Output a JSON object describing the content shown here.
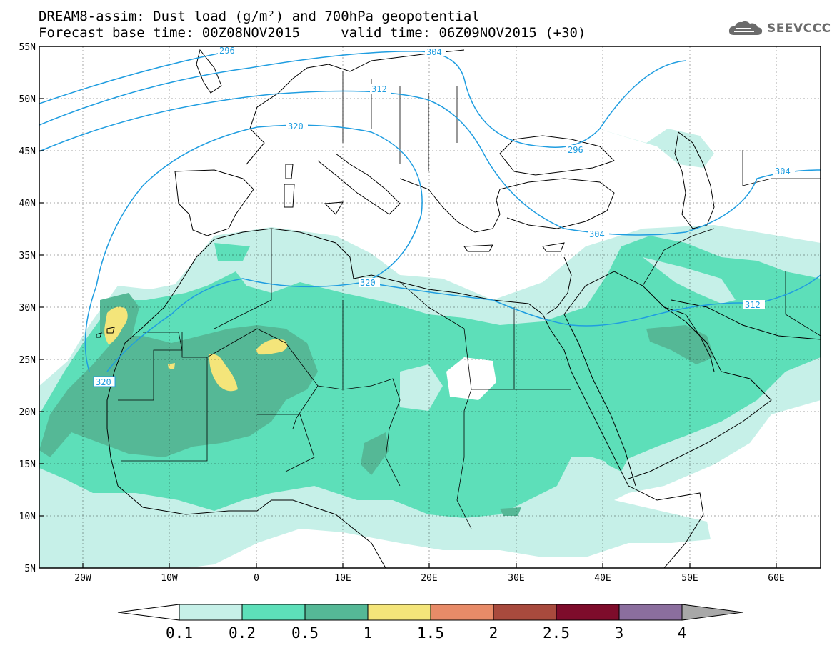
{
  "header": {
    "line1": "DREAM8-assim: Dust load (g/m²) and 700hPa geopotential",
    "line2": "Forecast base time: 00Z08NOV2015     valid time: 06Z09NOV2015 (+30)"
  },
  "logo": {
    "text": "SEEVCCC",
    "icon": "cloud-icon"
  },
  "map": {
    "lon_labels": [
      "20W",
      "10W",
      "0",
      "10E",
      "20E",
      "30E",
      "40E",
      "50E",
      "60E"
    ],
    "lat_labels": [
      "55N",
      "50N",
      "45N",
      "40N",
      "35N",
      "30N",
      "25N",
      "20N",
      "15N",
      "10N",
      "5N"
    ],
    "extent": {
      "lon": [
        -25,
        65
      ],
      "lat": [
        5,
        55
      ]
    },
    "contour_labels": [
      "296",
      "304",
      "312",
      "320",
      "320",
      "296",
      "304",
      "304",
      "312",
      "320"
    ]
  },
  "colorbar": {
    "levels": [
      "0.1",
      "0.2",
      "0.5",
      "1",
      "1.5",
      "2",
      "2.5",
      "3",
      "4"
    ],
    "colors": [
      "#ffffff",
      "#c6f0e8",
      "#5ddfb9",
      "#55b896",
      "#f4e57a",
      "#e88b68",
      "#a84a3d",
      "#7e0c2b",
      "#8b6e9e",
      "#a8a8a8"
    ]
  }
}
